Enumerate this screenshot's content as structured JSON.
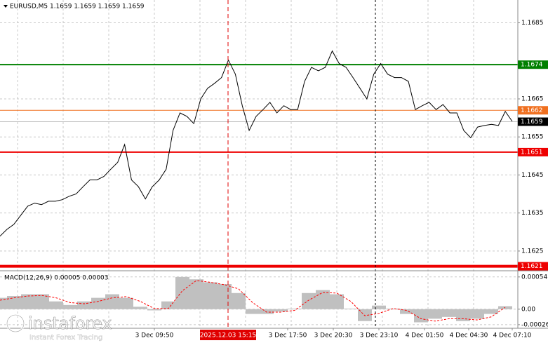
{
  "chart_data": [
    {
      "type": "line",
      "title": "EURUSD,M5  1.1659 1.1659 1.1659 1.1659",
      "color": "#000000",
      "values": [
        1.16289,
        1.16307,
        1.1632,
        1.16344,
        1.16368,
        1.16376,
        1.16372,
        1.16381,
        1.16381,
        1.16385,
        1.16394,
        1.164,
        1.16419,
        1.16437,
        1.16437,
        1.16446,
        1.16465,
        1.16483,
        1.1653,
        1.16437,
        1.16419,
        1.16387,
        1.16419,
        1.16437,
        1.16465,
        1.16567,
        1.16613,
        1.16604,
        1.16585,
        1.1665,
        1.16678,
        1.16691,
        1.16706,
        1.16752,
        1.16715,
        1.16632,
        1.16567,
        1.16604,
        1.16622,
        1.16641,
        1.16613,
        1.16632,
        1.16622,
        1.16622,
        1.16696,
        1.16733,
        1.16724,
        1.16733,
        1.16776,
        1.16743,
        1.16733,
        1.16706,
        1.16678,
        1.1665,
        1.16715,
        1.16743,
        1.16715,
        1.16706,
        1.16706,
        1.16696,
        1.16622,
        1.16632,
        1.16641,
        1.16622,
        1.16635,
        1.16613,
        1.16613,
        1.16567,
        1.16548,
        1.16576,
        1.1658,
        1.16583,
        1.1658,
        1.16617,
        1.16591
      ],
      "trend": {
        "color": "#0000cc",
        "values": [
          null,
          null,
          null,
          null,
          null,
          null,
          null,
          null,
          null,
          null,
          null,
          null,
          null,
          null,
          null,
          null,
          null,
          null,
          null,
          null,
          null,
          null,
          null,
          null,
          null,
          null,
          null,
          null,
          null,
          null,
          null,
          null,
          null,
          1.16752,
          null,
          null,
          1.16567,
          null,
          null,
          null,
          null,
          null,
          null,
          null,
          null,
          null,
          null,
          null,
          null,
          null,
          null,
          null,
          null,
          null,
          null,
          null,
          null,
          null,
          null,
          null,
          null,
          null,
          null,
          null,
          null,
          null,
          null,
          null,
          null,
          null,
          null,
          null,
          null,
          null
        ]
      },
      "levels": [
        {
          "value": 1.1674,
          "color": "#008000",
          "line_width": 2
        },
        {
          "value": 1.1662,
          "color": "#f07020",
          "line_width": 1
        },
        {
          "value": 1.1651,
          "color": "#ee0000",
          "line_width": 2
        },
        {
          "value": 1.1621,
          "color": "#ee0000",
          "line_width": 4
        }
      ],
      "current": {
        "value": 1.1659,
        "color": "#000000"
      },
      "ylim": [
        1.162,
        1.1691
      ],
      "yticks": [
        1.1625,
        1.1635,
        1.1645,
        1.1655,
        1.1665,
        1.1685
      ],
      "grid": true
    },
    {
      "type": "macd",
      "title": "MACD(12,26,9) 0.00005 0.00003",
      "color": "#c0c0c0",
      "values": [
        0.00019,
        0.00022,
        0.00025,
        0.00025,
        0.00013,
        7e-05,
        0.00013,
        0.00019,
        0.00025,
        0.00019,
        4e-05,
        -2e-05,
        0.00013,
        0.00054,
        0.0005,
        0.00045,
        0.00042,
        0.00027,
        -8e-05,
        -8e-05,
        -4e-05,
        1e-05,
        0.00027,
        0.00032,
        0.00025,
        1e-05,
        -0.0002,
        6e-05,
        1e-05,
        -8e-05,
        -0.00022,
        -0.00016,
        -0.00013,
        -0.0002,
        -0.00016,
        -8e-05,
        5e-05
      ],
      "signal": {
        "color": "#ff0000",
        "values": [
          0.00015,
          0.00019,
          0.00022,
          0.00023,
          0.00019,
          0.00011,
          9e-05,
          0.00013,
          0.00019,
          0.00021,
          0.00013,
          1e-05,
          1e-05,
          0.00031,
          0.00048,
          0.00045,
          0.00041,
          0.00034,
          0.00011,
          -5e-05,
          -5e-05,
          -2e-05,
          0.00015,
          0.00028,
          0.00027,
          0.00013,
          -0.00011,
          -7e-05,
          1e-05,
          -2e-05,
          -0.00016,
          -0.0002,
          -0.00016,
          -0.00016,
          -0.00018,
          -0.00013,
          3e-05
        ]
      },
      "ylim": [
        -0.00032,
        0.00062
      ],
      "yticks": [
        0.00054,
        {
          "value": 0,
          "label": "0.00"
        },
        -0.00026
      ],
      "grid": true
    }
  ],
  "x_axis": {
    "labels": [
      "3 Dec 09:50",
      "3 Dec 17:50",
      "3 Dec 20:30",
      "3 Dec 23:10",
      "4 Dec 01:50",
      "4 Dec 04:30",
      "4 Dec 07:10"
    ],
    "highlight": "2025.12.03 15:15"
  },
  "watermark": {
    "brand": "instaforex",
    "tagline": "Instant Forex Tracing"
  }
}
